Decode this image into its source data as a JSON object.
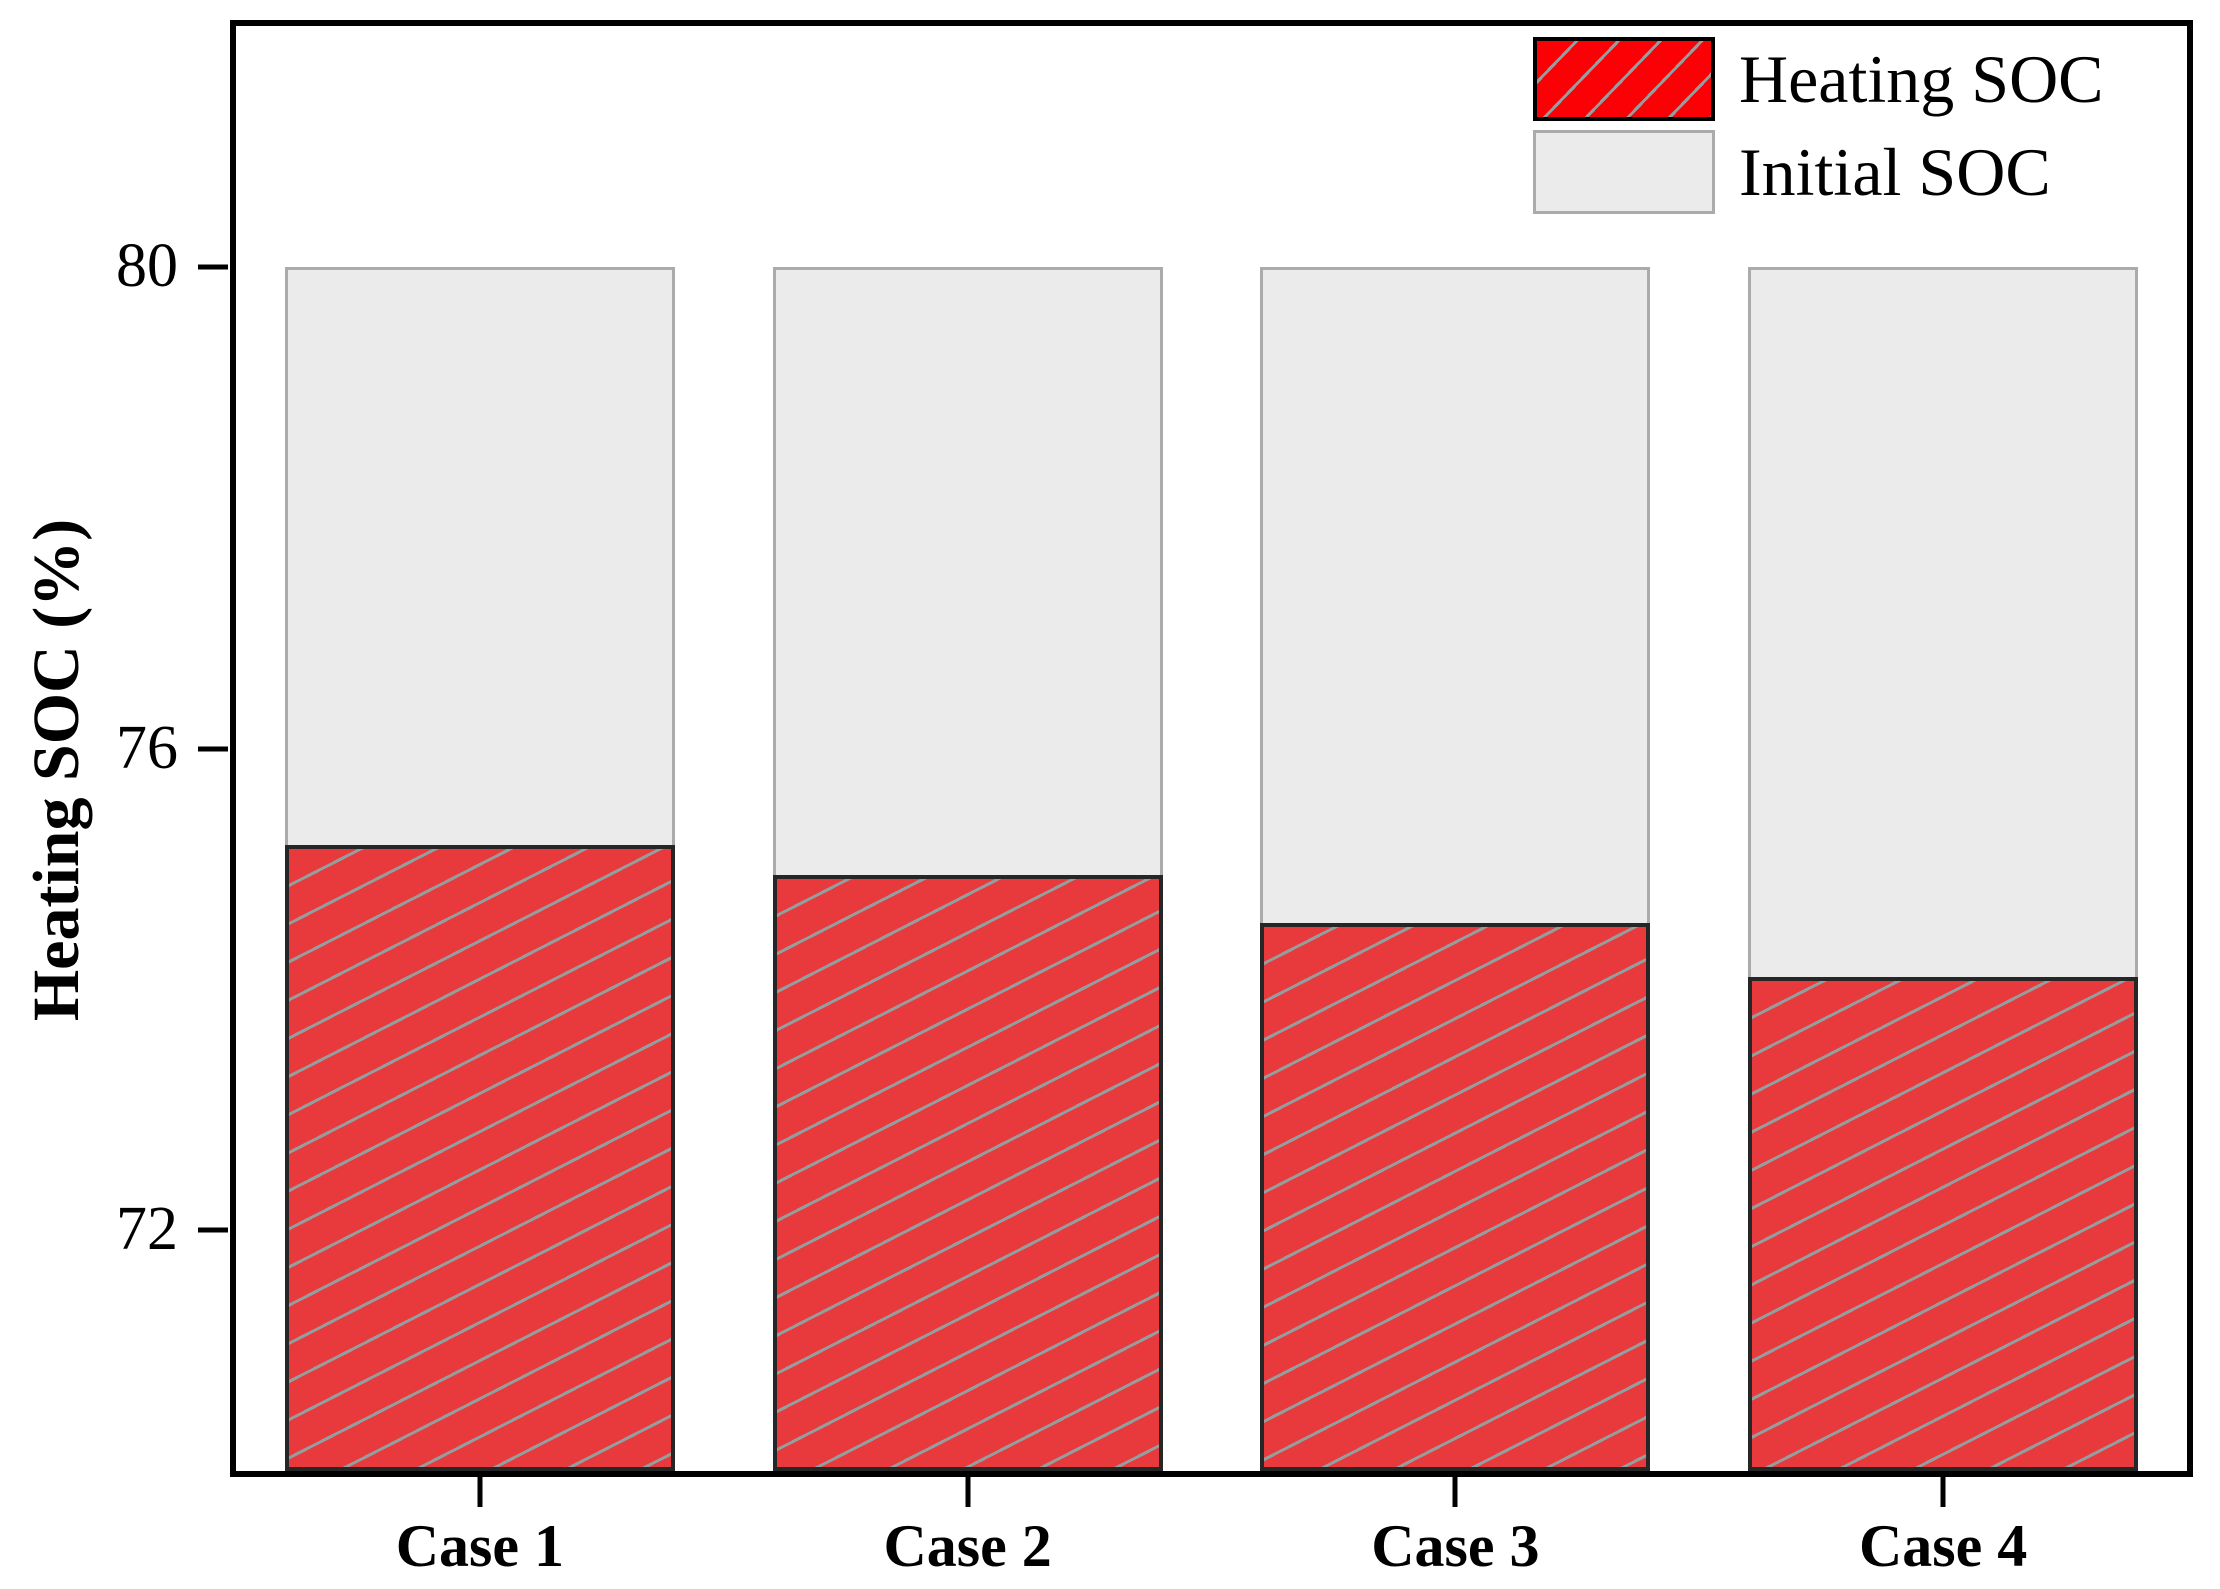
{
  "figure": {
    "background": "#ffffff"
  },
  "axes": {
    "ylabel": "Heating SOC (%)"
  },
  "legend": {
    "items": [
      {
        "label": "Heating SOC",
        "swatch": "red-hatched"
      },
      {
        "label": "Initial SOC",
        "swatch": "light-gray"
      }
    ]
  },
  "colors": {
    "bar_red": "#e83a3c",
    "legend_red": "#fb0106",
    "bar_gray": "#ebebeb",
    "gray_border": "#ababab",
    "red_border": "#262626",
    "hatch_gray": "#949e9e",
    "axis_black": "#000000"
  },
  "chart_data": {
    "type": "bar",
    "subtype": "overlaid",
    "categories": [
      "Case 1",
      "Case 2",
      "Case 3",
      "Case 4"
    ],
    "series": [
      {
        "name": "Initial SOC",
        "values": [
          80,
          80,
          80,
          80
        ]
      },
      {
        "name": "Heating SOC",
        "values": [
          75.2,
          74.95,
          74.55,
          74.1
        ]
      }
    ],
    "title": "",
    "xlabel": "",
    "ylabel": "Heating SOC (%)",
    "ylim": [
      70,
      82
    ],
    "yticks": [
      72,
      76,
      80
    ],
    "grid": false,
    "legend_position": "top-right-inside"
  }
}
